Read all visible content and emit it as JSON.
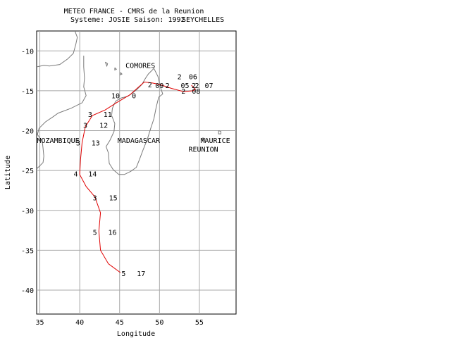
{
  "header": {
    "line1": "METEO FRANCE - CMRS de la Reunion",
    "line2": "Systeme: JOSIE  Saison: 1992",
    "overlap_label": "SEYCHELLES"
  },
  "axes": {
    "xlabel": "Longitude",
    "ylabel": "Latitude",
    "xlim": [
      34.6,
      59.6
    ],
    "ylim": [
      -43,
      -7.5
    ],
    "xticks": [
      35,
      40,
      45,
      50,
      55
    ],
    "yticks": [
      -10,
      -15,
      -20,
      -25,
      -30,
      -35,
      -40
    ]
  },
  "places": [
    {
      "label": "COMORES",
      "lon": 47.6,
      "lat": -11.8
    },
    {
      "label": "MOZAMBIQUE",
      "lon": 37.3,
      "lat": -21.2
    },
    {
      "label": "MADAGASCAR",
      "lon": 47.4,
      "lat": -21.2
    },
    {
      "label": "MAURICE",
      "lon": 57.0,
      "lat": -21.2
    },
    {
      "label": "REUNION",
      "lon": 55.5,
      "lat": -22.3
    }
  ],
  "track": [
    [
      54.0,
      -14.3
    ],
    [
      54.5,
      -14.8
    ],
    [
      54.2,
      -15.0
    ],
    [
      53.0,
      -15.1
    ],
    [
      51.5,
      -14.7
    ],
    [
      50.0,
      -14.2
    ],
    [
      49.0,
      -14.0
    ],
    [
      48.1,
      -13.9
    ],
    [
      47.3,
      -14.6
    ],
    [
      46.3,
      -15.5
    ],
    [
      44.6,
      -16.5
    ],
    [
      43.2,
      -17.4
    ],
    [
      41.6,
      -18.1
    ],
    [
      40.7,
      -19.5
    ],
    [
      40.3,
      -21.5
    ],
    [
      40.1,
      -23.6
    ],
    [
      40.0,
      -25.5
    ],
    [
      40.8,
      -27.0
    ],
    [
      41.9,
      -28.3
    ],
    [
      42.6,
      -30.3
    ],
    [
      42.4,
      -32.6
    ],
    [
      42.6,
      -35.0
    ],
    [
      43.6,
      -36.7
    ],
    [
      45.1,
      -37.8
    ]
  ],
  "track_points": [
    {
      "intensity": "2",
      "date": "06",
      "lon": 52.5,
      "lat": -13.2,
      "date_lon": 54.2,
      "date_lat": -13.2
    },
    {
      "intensity": "2",
      "date": "07",
      "lon": 54.7,
      "lat": -14.3,
      "date_lon": 56.2,
      "date_lat": -14.3
    },
    {
      "intensity": "2",
      "date": "08",
      "lon": 53.0,
      "lat": -15.0,
      "date_lon": 54.6,
      "date_lat": -15.0
    },
    {
      "intensity": "2",
      "date": "09",
      "lon": 51.0,
      "lat": -14.3,
      "date_lon": 50.0,
      "date_lat": -14.3
    },
    {
      "intensity": "2",
      "date": "05",
      "lon": 54.3,
      "lat": -14.3,
      "date_lon": 53.2,
      "date_lat": -14.3
    },
    {
      "intensity": "0",
      "date": "10",
      "lon": 46.8,
      "lat": -15.6,
      "date_lon": 44.5,
      "date_lat": -15.6
    },
    {
      "intensity": "2",
      "date": "",
      "lon": 48.8,
      "lat": -14.2,
      "date_lon": 48.8,
      "date_lat": -14.2
    },
    {
      "intensity": "3",
      "date": "11",
      "lon": 41.3,
      "lat": -17.9,
      "date_lon": 43.5,
      "date_lat": -17.9
    },
    {
      "intensity": "3",
      "date": "12",
      "lon": 40.7,
      "lat": -19.3,
      "date_lon": 43.0,
      "date_lat": -19.3
    },
    {
      "intensity": "3",
      "date": "13",
      "lon": 39.8,
      "lat": -21.5,
      "date_lon": 42.0,
      "date_lat": -21.5
    },
    {
      "intensity": "4",
      "date": "14",
      "lon": 39.5,
      "lat": -25.4,
      "date_lon": 41.6,
      "date_lat": -25.4
    },
    {
      "intensity": "3",
      "date": "15",
      "lon": 41.9,
      "lat": -28.4,
      "date_lon": 44.2,
      "date_lat": -28.4
    },
    {
      "intensity": "5",
      "date": "16",
      "lon": 41.9,
      "lat": -32.7,
      "date_lon": 44.1,
      "date_lat": -32.7
    },
    {
      "intensity": "5",
      "date": "17",
      "lon": 45.5,
      "lat": -37.9,
      "date_lon": 47.7,
      "date_lat": -37.9
    }
  ],
  "coastlines": [
    [
      [
        34.6,
        -12.0
      ],
      [
        35.5,
        -11.8
      ],
      [
        36.2,
        -11.9
      ],
      [
        37.5,
        -11.7
      ],
      [
        38.5,
        -11.0
      ],
      [
        39.2,
        -10.3
      ],
      [
        39.5,
        -9.2
      ],
      [
        39.7,
        -8.3
      ],
      [
        39.4,
        -7.5
      ]
    ],
    [
      [
        40.5,
        -10.6
      ],
      [
        40.5,
        -12.0
      ],
      [
        40.6,
        -13.4
      ],
      [
        40.5,
        -14.5
      ],
      [
        40.8,
        -15.6
      ],
      [
        40.3,
        -16.5
      ],
      [
        38.9,
        -17.2
      ],
      [
        37.3,
        -17.8
      ],
      [
        36.6,
        -18.3
      ],
      [
        35.7,
        -18.9
      ],
      [
        34.9,
        -19.7
      ],
      [
        34.7,
        -20.5
      ],
      [
        35.3,
        -21.3
      ],
      [
        35.4,
        -22.2
      ],
      [
        35.5,
        -23.2
      ],
      [
        35.4,
        -24.0
      ],
      [
        34.6,
        -24.8
      ]
    ],
    [
      [
        49.3,
        -12.2
      ],
      [
        49.8,
        -13.2
      ],
      [
        50.1,
        -14.5
      ],
      [
        50.4,
        -15.4
      ],
      [
        49.9,
        -15.8
      ],
      [
        49.6,
        -17.0
      ],
      [
        49.3,
        -18.5
      ],
      [
        48.9,
        -19.7
      ],
      [
        48.5,
        -21.0
      ],
      [
        47.9,
        -22.5
      ],
      [
        47.5,
        -23.6
      ],
      [
        47.1,
        -24.6
      ],
      [
        46.4,
        -25.1
      ],
      [
        45.6,
        -25.5
      ],
      [
        44.9,
        -25.5
      ],
      [
        44.2,
        -24.9
      ],
      [
        43.7,
        -24.1
      ],
      [
        43.6,
        -22.8
      ],
      [
        43.3,
        -22.0
      ],
      [
        43.8,
        -21.2
      ],
      [
        44.3,
        -20.1
      ],
      [
        44.4,
        -19.1
      ],
      [
        44.0,
        -18.1
      ],
      [
        44.1,
        -17.2
      ],
      [
        44.5,
        -16.3
      ],
      [
        45.2,
        -15.9
      ],
      [
        46.0,
        -15.7
      ],
      [
        46.6,
        -15.3
      ],
      [
        47.2,
        -14.8
      ],
      [
        47.8,
        -14.2
      ],
      [
        48.2,
        -13.5
      ],
      [
        48.6,
        -12.9
      ],
      [
        49.3,
        -12.2
      ]
    ],
    [
      [
        43.2,
        -11.4
      ],
      [
        43.5,
        -11.6
      ],
      [
        43.4,
        -11.9
      ],
      [
        43.2,
        -11.4
      ]
    ],
    [
      [
        44.4,
        -12.1
      ],
      [
        44.6,
        -12.3
      ],
      [
        44.4,
        -12.4
      ],
      [
        44.4,
        -12.1
      ]
    ],
    [
      [
        45.1,
        -12.7
      ],
      [
        45.3,
        -12.9
      ],
      [
        45.1,
        -13.0
      ],
      [
        45.1,
        -12.7
      ]
    ],
    [
      [
        55.4,
        -20.9
      ],
      [
        55.7,
        -21.0
      ],
      [
        55.7,
        -21.3
      ],
      [
        55.4,
        -21.3
      ],
      [
        55.4,
        -20.9
      ]
    ],
    [
      [
        57.4,
        -20.0
      ],
      [
        57.7,
        -20.1
      ],
      [
        57.7,
        -20.4
      ],
      [
        57.4,
        -20.4
      ],
      [
        57.4,
        -20.0
      ]
    ]
  ]
}
